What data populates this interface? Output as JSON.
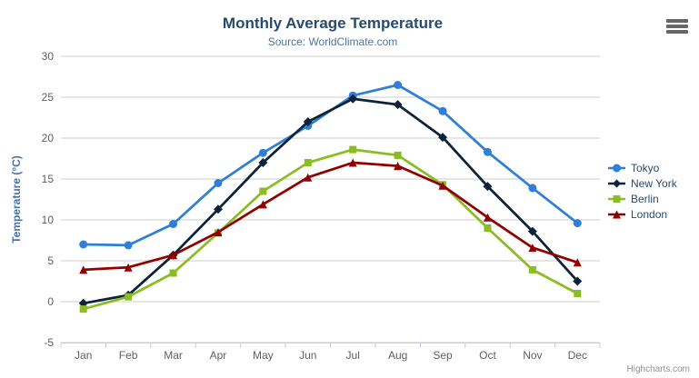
{
  "chart": {
    "title": "Monthly Average Temperature",
    "subtitle": "Source: WorldClimate.com",
    "credits": "Highcharts.com",
    "context_menu_icon": "hamburger-icon"
  },
  "colors": {
    "title_text": "#274b6d",
    "subtitle_text": "#4d759e",
    "axis_label_text": "#606060",
    "yaxis_title_text": "#4572A7",
    "gridline": "#cccccc",
    "axis_line": "#c0d0e0",
    "legend_text": "#274b6d",
    "context_button": "#666666",
    "credits_text": "#909090"
  },
  "chart_data": {
    "type": "line",
    "title": "Monthly Average Temperature",
    "subtitle": "Source: WorldClimate.com",
    "categories": [
      "Jan",
      "Feb",
      "Mar",
      "Apr",
      "May",
      "Jun",
      "Jul",
      "Aug",
      "Sep",
      "Oct",
      "Nov",
      "Dec"
    ],
    "series": [
      {
        "name": "Tokyo",
        "color": "#2f7ed8",
        "marker": "circle",
        "values": [
          7.0,
          6.9,
          9.5,
          14.5,
          18.2,
          21.5,
          25.2,
          26.5,
          23.3,
          18.3,
          13.9,
          9.6
        ]
      },
      {
        "name": "New York",
        "color": "#0d233a",
        "marker": "diamond",
        "values": [
          -0.2,
          0.8,
          5.7,
          11.3,
          17.0,
          22.0,
          24.8,
          24.1,
          20.1,
          14.1,
          8.6,
          2.5
        ]
      },
      {
        "name": "Berlin",
        "color": "#8bbc21",
        "marker": "square",
        "values": [
          -0.9,
          0.6,
          3.5,
          8.4,
          13.5,
          17.0,
          18.6,
          17.9,
          14.3,
          9.0,
          3.9,
          1.0
        ]
      },
      {
        "name": "London",
        "color": "#910000",
        "marker": "triangle",
        "values": [
          3.9,
          4.2,
          5.7,
          8.5,
          11.9,
          15.2,
          17.0,
          16.6,
          14.2,
          10.3,
          6.6,
          4.8
        ]
      }
    ],
    "xlabel": "",
    "ylabel": "Temperature (°C)",
    "ylim": [
      -5,
      30
    ],
    "ytick_step": 5,
    "grid": true,
    "legend_position": "right"
  }
}
